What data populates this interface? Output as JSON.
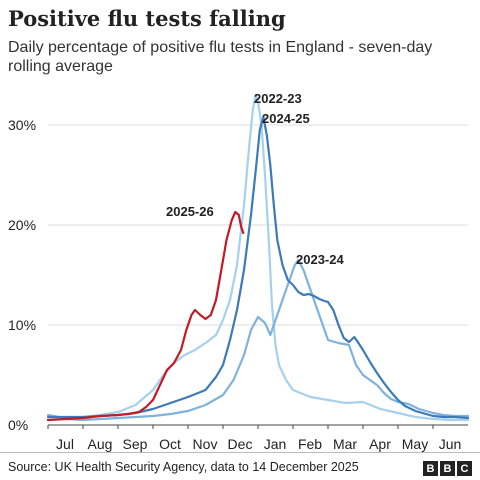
{
  "title": "Positive flu tests falling",
  "subtitle": "Daily percentage of positive flu tests in England - seven-day rolling average",
  "source": "Source: UK Health Security Agency, data to 14 December 2025",
  "logo": [
    "B",
    "B",
    "C"
  ],
  "chart_data": {
    "type": "line",
    "title": "Positive flu tests falling",
    "subtitle": "Daily percentage of positive flu tests in England - seven-day rolling average",
    "xlabel": "",
    "ylabel": "",
    "x_ticks": [
      "Jul",
      "Aug",
      "Sep",
      "Oct",
      "Nov",
      "Dec",
      "Jan",
      "Feb",
      "Mar",
      "Apr",
      "May",
      "Jun"
    ],
    "y_ticks": [
      "0%",
      "10%",
      "20%",
      "30%"
    ],
    "ylim": [
      0,
      33
    ],
    "x_unit": "months since 1 July",
    "xlim": [
      0,
      12.3
    ],
    "grid": true,
    "legend": "direct labels",
    "series": [
      {
        "name": "2022-23",
        "color": "#a6d1ee",
        "points": [
          [
            0,
            0.5
          ],
          [
            0.5,
            0.6
          ],
          [
            1,
            0.8
          ],
          [
            1.5,
            1.0
          ],
          [
            2,
            1.3
          ],
          [
            2.5,
            2.0
          ],
          [
            3,
            3.5
          ],
          [
            3.3,
            5.0
          ],
          [
            3.6,
            6.2
          ],
          [
            3.9,
            7.0
          ],
          [
            4.2,
            7.5
          ],
          [
            4.5,
            8.2
          ],
          [
            4.8,
            9.0
          ],
          [
            5,
            10.5
          ],
          [
            5.2,
            12.5
          ],
          [
            5.4,
            16
          ],
          [
            5.6,
            22
          ],
          [
            5.75,
            28
          ],
          [
            5.85,
            31.5
          ],
          [
            5.93,
            33.0
          ],
          [
            6.0,
            32.3
          ],
          [
            6.1,
            30
          ],
          [
            6.2,
            25
          ],
          [
            6.3,
            19
          ],
          [
            6.4,
            12
          ],
          [
            6.5,
            8
          ],
          [
            6.6,
            6
          ],
          [
            6.8,
            4.5
          ],
          [
            7,
            3.5
          ],
          [
            7.5,
            2.8
          ],
          [
            8,
            2.5
          ],
          [
            8.5,
            2.2
          ],
          [
            9,
            2.3
          ],
          [
            9.5,
            1.6
          ],
          [
            10,
            1.2
          ],
          [
            10.5,
            0.8
          ],
          [
            11,
            0.6
          ],
          [
            11.5,
            0.5
          ],
          [
            12,
            0.5
          ]
        ]
      },
      {
        "name": "2023-24",
        "color": "#7fb2dc",
        "points": [
          [
            0,
            1.0
          ],
          [
            0.3,
            0.8
          ],
          [
            0.5,
            0.6
          ],
          [
            1,
            0.5
          ],
          [
            1.5,
            0.6
          ],
          [
            2,
            0.7
          ],
          [
            2.5,
            0.8
          ],
          [
            3,
            0.9
          ],
          [
            3.5,
            1.1
          ],
          [
            4,
            1.4
          ],
          [
            4.5,
            2.0
          ],
          [
            5,
            3.0
          ],
          [
            5.3,
            4.5
          ],
          [
            5.6,
            7.0
          ],
          [
            5.8,
            9.5
          ],
          [
            6.0,
            10.8
          ],
          [
            6.2,
            10.2
          ],
          [
            6.35,
            9.0
          ],
          [
            6.5,
            10.5
          ],
          [
            6.7,
            12.5
          ],
          [
            6.9,
            14.5
          ],
          [
            7.05,
            16.0
          ],
          [
            7.15,
            16.5
          ],
          [
            7.3,
            15.5
          ],
          [
            7.5,
            13.5
          ],
          [
            7.7,
            11.5
          ],
          [
            7.9,
            9.5
          ],
          [
            8,
            8.5
          ],
          [
            8.3,
            8.2
          ],
          [
            8.6,
            8.0
          ],
          [
            8.8,
            6.0
          ],
          [
            9,
            5.0
          ],
          [
            9.2,
            4.5
          ],
          [
            9.4,
            4.0
          ],
          [
            9.6,
            3.2
          ],
          [
            9.8,
            2.6
          ],
          [
            10,
            2.3
          ],
          [
            10.3,
            2.1
          ],
          [
            10.6,
            1.6
          ],
          [
            11,
            1.2
          ],
          [
            11.3,
            1.0
          ],
          [
            11.6,
            0.9
          ],
          [
            12,
            0.9
          ]
        ]
      },
      {
        "name": "2024-25",
        "color": "#3d7ab8",
        "points": [
          [
            0,
            0.8
          ],
          [
            0.5,
            0.8
          ],
          [
            1,
            0.8
          ],
          [
            1.5,
            0.9
          ],
          [
            2,
            1.0
          ],
          [
            2.5,
            1.2
          ],
          [
            3,
            1.6
          ],
          [
            3.5,
            2.2
          ],
          [
            4,
            2.8
          ],
          [
            4.5,
            3.5
          ],
          [
            4.8,
            4.8
          ],
          [
            5,
            6.0
          ],
          [
            5.2,
            8.5
          ],
          [
            5.4,
            11.5
          ],
          [
            5.6,
            15.5
          ],
          [
            5.8,
            21
          ],
          [
            5.95,
            26
          ],
          [
            6.05,
            29.5
          ],
          [
            6.15,
            30.8
          ],
          [
            6.25,
            29.0
          ],
          [
            6.35,
            26
          ],
          [
            6.45,
            22
          ],
          [
            6.55,
            18.5
          ],
          [
            6.7,
            16
          ],
          [
            6.85,
            14.5
          ],
          [
            7,
            14
          ],
          [
            7.15,
            13.3
          ],
          [
            7.3,
            13.0
          ],
          [
            7.45,
            13.1
          ],
          [
            7.6,
            12.9
          ],
          [
            7.75,
            12.6
          ],
          [
            7.9,
            12.4
          ],
          [
            8,
            12.3
          ],
          [
            8.15,
            11.5
          ],
          [
            8.3,
            10.0
          ],
          [
            8.45,
            8.7
          ],
          [
            8.6,
            8.3
          ],
          [
            8.75,
            8.8
          ],
          [
            8.85,
            8.3
          ],
          [
            9,
            7.5
          ],
          [
            9.2,
            6.3
          ],
          [
            9.4,
            5.2
          ],
          [
            9.6,
            4.2
          ],
          [
            9.8,
            3.3
          ],
          [
            10,
            2.5
          ],
          [
            10.2,
            1.9
          ],
          [
            10.5,
            1.4
          ],
          [
            10.8,
            1.1
          ],
          [
            11,
            0.9
          ],
          [
            11.3,
            0.8
          ],
          [
            11.6,
            0.8
          ],
          [
            12,
            0.7
          ]
        ]
      },
      {
        "name": "2025-26",
        "color": "#c31a24",
        "points": [
          [
            0,
            0.5
          ],
          [
            0.5,
            0.6
          ],
          [
            1,
            0.7
          ],
          [
            1.5,
            0.9
          ],
          [
            2,
            1.0
          ],
          [
            2.3,
            1.1
          ],
          [
            2.6,
            1.3
          ],
          [
            2.8,
            1.8
          ],
          [
            3,
            2.5
          ],
          [
            3.2,
            4.0
          ],
          [
            3.4,
            5.5
          ],
          [
            3.6,
            6.2
          ],
          [
            3.8,
            7.5
          ],
          [
            3.95,
            9.5
          ],
          [
            4.1,
            11.0
          ],
          [
            4.2,
            11.5
          ],
          [
            4.35,
            11.0
          ],
          [
            4.5,
            10.6
          ],
          [
            4.65,
            11.0
          ],
          [
            4.8,
            12.5
          ],
          [
            4.95,
            15.5
          ],
          [
            5.1,
            18.5
          ],
          [
            5.25,
            20.5
          ],
          [
            5.35,
            21.3
          ],
          [
            5.45,
            21.0
          ],
          [
            5.52,
            19.8
          ],
          [
            5.58,
            19.2
          ]
        ]
      }
    ]
  }
}
